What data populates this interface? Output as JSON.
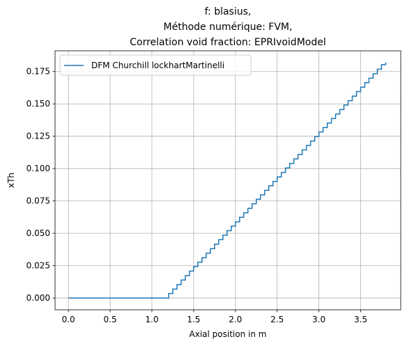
{
  "chart_data": {
    "type": "line",
    "title_lines": [
      "f: blasius,",
      "Méthode numérique: FVM,",
      "Correlation void fraction: EPRIvoidModel"
    ],
    "xlabel": "Axial position in m",
    "ylabel": "xTh",
    "xlim": [
      -0.16,
      3.98
    ],
    "ylim": [
      -0.0091,
      0.191
    ],
    "xticks": [
      0.0,
      0.5,
      1.0,
      1.5,
      2.0,
      2.5,
      3.0,
      3.5
    ],
    "xtick_labels": [
      "0.0",
      "0.5",
      "1.0",
      "1.5",
      "2.0",
      "2.5",
      "3.0",
      "3.5"
    ],
    "yticks": [
      0.0,
      0.025,
      0.05,
      0.075,
      0.1,
      0.125,
      0.15,
      0.175
    ],
    "ytick_labels": [
      "0.000",
      "0.025",
      "0.050",
      "0.075",
      "0.100",
      "0.125",
      "0.150",
      "0.175"
    ],
    "grid": true,
    "legend_position": "top-left",
    "series": [
      {
        "name": "DFM Churchill lockhartMartinelli",
        "color": "#1f77b4",
        "step": true,
        "x": [
          0.0,
          1.15,
          1.2,
          1.25,
          1.3,
          1.35,
          1.4,
          1.45,
          1.5,
          1.55,
          1.6,
          1.65,
          1.7,
          1.75,
          1.8,
          1.85,
          1.9,
          1.95,
          2.0,
          2.05,
          2.1,
          2.15,
          2.2,
          2.25,
          2.3,
          2.35,
          2.4,
          2.45,
          2.5,
          2.55,
          2.6,
          2.65,
          2.7,
          2.75,
          2.8,
          2.85,
          2.9,
          2.95,
          3.0,
          3.05,
          3.1,
          3.15,
          3.2,
          3.25,
          3.3,
          3.35,
          3.4,
          3.45,
          3.5,
          3.55,
          3.6,
          3.65,
          3.7,
          3.75,
          3.8
        ],
        "y": [
          0.0,
          0.0,
          0.0035,
          0.0069,
          0.0104,
          0.0139,
          0.0173,
          0.0208,
          0.0243,
          0.0277,
          0.0312,
          0.0347,
          0.0381,
          0.0416,
          0.0451,
          0.0485,
          0.052,
          0.0555,
          0.0589,
          0.0624,
          0.0659,
          0.0693,
          0.0728,
          0.0763,
          0.0797,
          0.0832,
          0.0867,
          0.0901,
          0.0936,
          0.0971,
          0.1005,
          0.104,
          0.1075,
          0.1109,
          0.1144,
          0.1179,
          0.1213,
          0.1248,
          0.1283,
          0.1317,
          0.1352,
          0.1387,
          0.1421,
          0.1456,
          0.1491,
          0.1525,
          0.156,
          0.1595,
          0.1629,
          0.1664,
          0.1699,
          0.1733,
          0.1768,
          0.1803,
          0.182
        ]
      }
    ]
  }
}
